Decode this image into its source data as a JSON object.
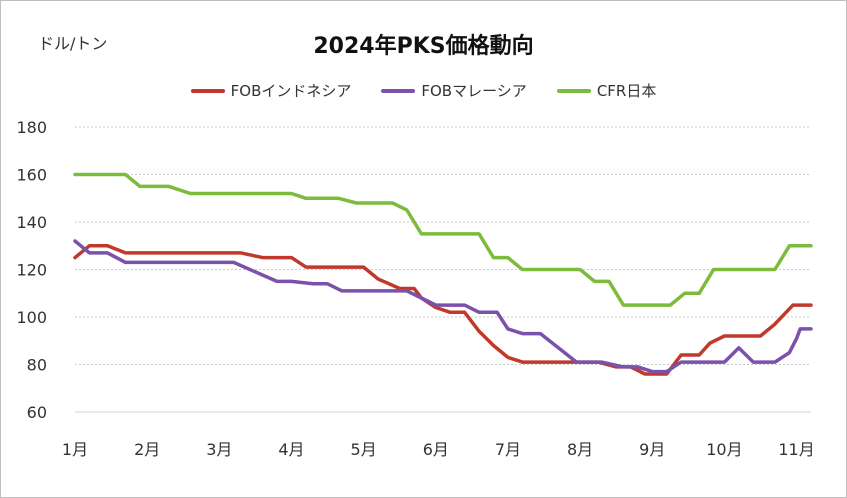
{
  "chart_data": {
    "type": "line",
    "title": "2024年PKS価格動向",
    "ylabel": "ドル/トン",
    "ylim": [
      60,
      180
    ],
    "yticks": [
      60,
      80,
      100,
      120,
      140,
      160,
      180
    ],
    "grid": true,
    "legend_position": "top",
    "x_tick_labels": [
      "1月",
      "2月",
      "3月",
      "4月",
      "5月",
      "6月",
      "7月",
      "8月",
      "9月",
      "10月",
      "11月"
    ],
    "x_tick_positions": [
      1,
      2,
      3,
      4,
      5,
      6,
      7,
      8,
      9,
      10,
      11
    ],
    "xlim": [
      1,
      11.2
    ],
    "series": [
      {
        "name": "FOBインドネシア",
        "color": "#c0392b",
        "points": [
          [
            1.0,
            125
          ],
          [
            1.2,
            130
          ],
          [
            1.45,
            130
          ],
          [
            1.7,
            127
          ],
          [
            2.0,
            127
          ],
          [
            2.5,
            127
          ],
          [
            3.0,
            127
          ],
          [
            3.3,
            127
          ],
          [
            3.6,
            125
          ],
          [
            4.0,
            125
          ],
          [
            4.2,
            121
          ],
          [
            4.5,
            121
          ],
          [
            4.8,
            121
          ],
          [
            5.0,
            121
          ],
          [
            5.2,
            116
          ],
          [
            5.5,
            112
          ],
          [
            5.7,
            112
          ],
          [
            5.8,
            108
          ],
          [
            6.0,
            104
          ],
          [
            6.2,
            102
          ],
          [
            6.4,
            102
          ],
          [
            6.6,
            94
          ],
          [
            6.8,
            88
          ],
          [
            7.0,
            83
          ],
          [
            7.2,
            81
          ],
          [
            7.5,
            81
          ],
          [
            8.0,
            81
          ],
          [
            8.25,
            81
          ],
          [
            8.5,
            79
          ],
          [
            8.7,
            79
          ],
          [
            8.9,
            76
          ],
          [
            9.2,
            76
          ],
          [
            9.4,
            84
          ],
          [
            9.65,
            84
          ],
          [
            9.8,
            89
          ],
          [
            10.0,
            92
          ],
          [
            10.25,
            92
          ],
          [
            10.5,
            92
          ],
          [
            10.7,
            97
          ],
          [
            10.95,
            105
          ],
          [
            11.2,
            105
          ]
        ]
      },
      {
        "name": "FOBマレーシア",
        "color": "#7b52ab",
        "points": [
          [
            1.0,
            132
          ],
          [
            1.2,
            127
          ],
          [
            1.45,
            127
          ],
          [
            1.7,
            123
          ],
          [
            2.0,
            123
          ],
          [
            2.5,
            123
          ],
          [
            3.0,
            123
          ],
          [
            3.2,
            123
          ],
          [
            3.5,
            119
          ],
          [
            3.8,
            115
          ],
          [
            4.0,
            115
          ],
          [
            4.3,
            114
          ],
          [
            4.5,
            114
          ],
          [
            4.7,
            111
          ],
          [
            5.0,
            111
          ],
          [
            5.3,
            111
          ],
          [
            5.6,
            111
          ],
          [
            5.8,
            108
          ],
          [
            6.0,
            105
          ],
          [
            6.4,
            105
          ],
          [
            6.6,
            102
          ],
          [
            6.85,
            102
          ],
          [
            7.0,
            95
          ],
          [
            7.2,
            93
          ],
          [
            7.45,
            93
          ],
          [
            7.7,
            87
          ],
          [
            7.95,
            81
          ],
          [
            8.3,
            81
          ],
          [
            8.6,
            79
          ],
          [
            8.8,
            79
          ],
          [
            9.0,
            77
          ],
          [
            9.2,
            77
          ],
          [
            9.4,
            81
          ],
          [
            9.8,
            81
          ],
          [
            10.0,
            81
          ],
          [
            10.2,
            87
          ],
          [
            10.4,
            81
          ],
          [
            10.7,
            81
          ],
          [
            10.9,
            85
          ],
          [
            11.0,
            91
          ],
          [
            11.05,
            95
          ],
          [
            11.2,
            95
          ]
        ]
      },
      {
        "name": "CFR日本",
        "color": "#7cbb3c",
        "points": [
          [
            1.0,
            160
          ],
          [
            1.5,
            160
          ],
          [
            1.7,
            160
          ],
          [
            1.9,
            155
          ],
          [
            2.3,
            155
          ],
          [
            2.6,
            152
          ],
          [
            3.0,
            152
          ],
          [
            3.5,
            152
          ],
          [
            4.0,
            152
          ],
          [
            4.2,
            150
          ],
          [
            4.65,
            150
          ],
          [
            4.9,
            148
          ],
          [
            5.0,
            148
          ],
          [
            5.4,
            148
          ],
          [
            5.6,
            145
          ],
          [
            5.8,
            135
          ],
          [
            6.0,
            135
          ],
          [
            6.6,
            135
          ],
          [
            6.8,
            125
          ],
          [
            7.0,
            125
          ],
          [
            7.2,
            120
          ],
          [
            7.5,
            120
          ],
          [
            8.0,
            120
          ],
          [
            8.2,
            115
          ],
          [
            8.4,
            115
          ],
          [
            8.6,
            105
          ],
          [
            9.0,
            105
          ],
          [
            9.25,
            105
          ],
          [
            9.45,
            110
          ],
          [
            9.65,
            110
          ],
          [
            9.85,
            120
          ],
          [
            10.2,
            120
          ],
          [
            10.5,
            120
          ],
          [
            10.7,
            120
          ],
          [
            10.9,
            130
          ],
          [
            11.2,
            130
          ]
        ]
      }
    ]
  }
}
